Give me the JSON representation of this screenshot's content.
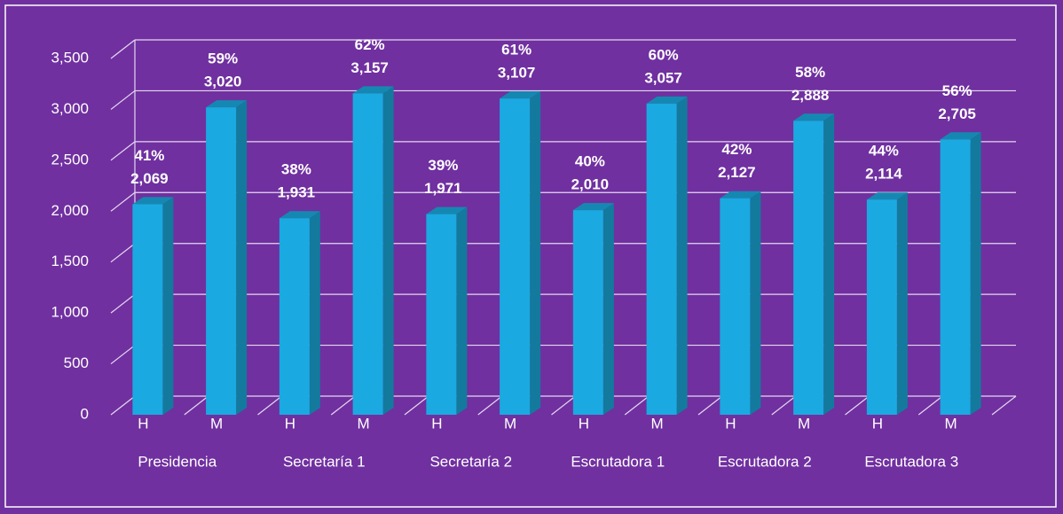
{
  "chart_data": {
    "type": "bar3d",
    "categories": [
      "H",
      "M",
      "H",
      "M",
      "H",
      "M",
      "H",
      "M",
      "H",
      "M",
      "H",
      "M"
    ],
    "groups": [
      "Presidencia",
      "Secretaría 1",
      "Secretaría 2",
      "Escrutadora 1",
      "Escrutadora 2",
      "Escrutadora 3"
    ],
    "values": [
      2069,
      3020,
      1931,
      3157,
      1971,
      3107,
      2010,
      3057,
      2127,
      2888,
      2114,
      2705
    ],
    "value_labels": [
      "2,069",
      "3,020",
      "1,931",
      "3,157",
      "1,971",
      "3,107",
      "2,010",
      "3,057",
      "2,127",
      "2,888",
      "2,114",
      "2,705"
    ],
    "percent_labels": [
      "41%",
      "59%",
      "38%",
      "62%",
      "39%",
      "61%",
      "40%",
      "60%",
      "42%",
      "58%",
      "44%",
      "56%"
    ],
    "color": "#1ba9e1",
    "ylim": [
      0,
      3500
    ],
    "yticks": [
      0,
      500,
      {
        "value": 1000,
        "label": "1,000"
      },
      {
        "value": 1500,
        "label": "1,500"
      },
      {
        "value": 2000,
        "label": "2,000"
      },
      {
        "value": 2500,
        "label": "2,500"
      },
      {
        "value": 3000,
        "label": "3,000"
      },
      {
        "value": 3500,
        "label": "3,500"
      }
    ],
    "grid": true
  }
}
